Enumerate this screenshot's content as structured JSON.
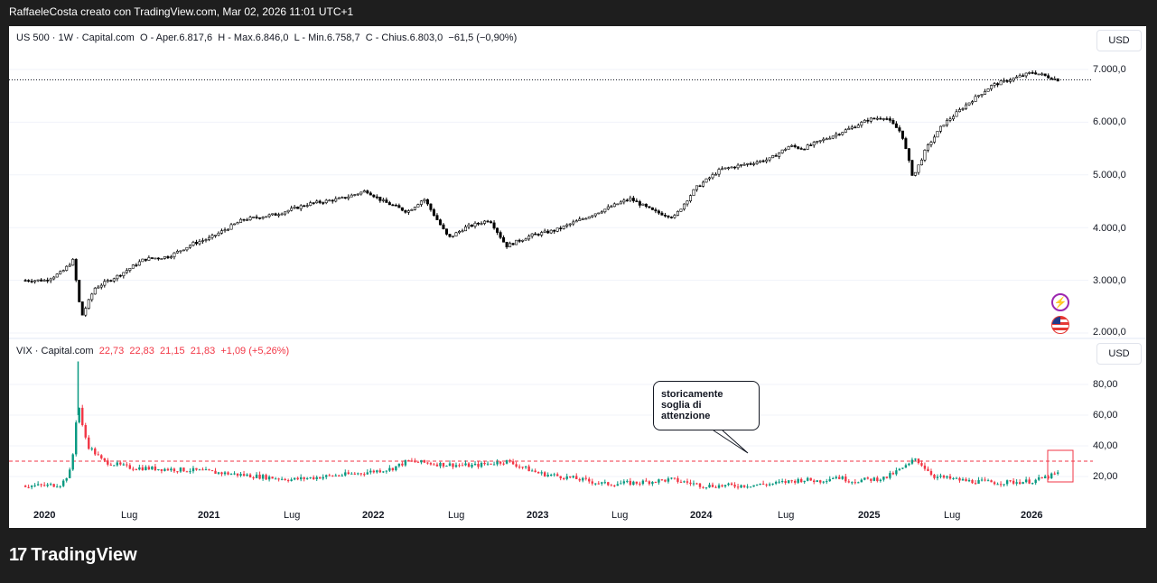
{
  "header": {
    "title": "RaffaeleCosta creato con TradingView.com, Mar 02, 2026 11:01 UTC+1"
  },
  "footer": {
    "brand": "TradingView"
  },
  "chart_data": [
    {
      "type": "candlestick",
      "legend": {
        "symbol": "US 500 · 1W · Capital.com",
        "open": "O - Aper.6.817,6",
        "high": "H - Max.6.846,0",
        "low": "L - Min.6.758,7",
        "close": "C - Chius.6.803,0",
        "change": "−61,5 (−0,90%)"
      },
      "currency_button": "USD",
      "y_ticks": [
        "7.000,0",
        "6.000,0",
        "5.000,0",
        "4.000,0",
        "3.000,0",
        "2.000,0"
      ],
      "y_tick_values": [
        7000,
        6000,
        5000,
        4000,
        3000,
        2000
      ],
      "ylim": [
        2000,
        7500
      ],
      "last_price_line": 6803,
      "x": [
        2020.0,
        2020.1,
        2020.17,
        2020.22,
        2020.3,
        2020.45,
        2020.6,
        2020.75,
        2020.9,
        2021.0,
        2021.2,
        2021.4,
        2021.6,
        2021.8,
        2021.95,
        2022.05,
        2022.2,
        2022.3,
        2022.45,
        2022.55,
        2022.7,
        2022.8,
        2022.95,
        2023.1,
        2023.25,
        2023.4,
        2023.55,
        2023.7,
        2023.82,
        2023.95,
        2024.1,
        2024.25,
        2024.4,
        2024.52,
        2024.6,
        2024.75,
        2024.9,
        2025.0,
        2025.1,
        2025.2,
        2025.27,
        2025.35,
        2025.45,
        2025.6,
        2025.75,
        2025.9,
        2026.0,
        2026.1,
        2026.15
      ],
      "values": [
        3000,
        3150,
        3380,
        2300,
        2850,
        3100,
        3400,
        3450,
        3700,
        3800,
        4150,
        4250,
        4450,
        4550,
        4700,
        4500,
        4300,
        4550,
        3800,
        4000,
        4150,
        3650,
        3850,
        3950,
        4150,
        4350,
        4550,
        4300,
        4200,
        4750,
        5100,
        5200,
        5300,
        5550,
        5500,
        5700,
        5900,
        6050,
        6100,
        5800,
        4950,
        5500,
        5950,
        6350,
        6700,
        6850,
        6950,
        6850,
        6803
      ]
    },
    {
      "type": "candlestick",
      "legend": {
        "symbol": "VIX · Capital.com",
        "open": "22,73",
        "high": "22,83",
        "low": "21,15",
        "close": "21,83",
        "change": "+1,09 (+5,26%)"
      },
      "currency_button": "USD",
      "y_ticks": [
        "80,00",
        "60,00",
        "40,00",
        "20,00"
      ],
      "y_tick_values": [
        80,
        60,
        40,
        20
      ],
      "ylim": [
        0,
        100
      ],
      "threshold_line": 30,
      "annotation": "storicamente soglia di attenzione",
      "x": [
        2020.0,
        2020.1,
        2020.16,
        2020.2,
        2020.22,
        2020.26,
        2020.35,
        2020.5,
        2020.7,
        2020.9,
        2021.1,
        2021.3,
        2021.5,
        2021.7,
        2021.9,
        2022.1,
        2022.2,
        2022.4,
        2022.6,
        2022.8,
        2023.0,
        2023.2,
        2023.4,
        2023.6,
        2023.8,
        2024.0,
        2024.2,
        2024.4,
        2024.6,
        2024.7,
        2024.8,
        2024.9,
        2025.1,
        2025.25,
        2025.28,
        2025.4,
        2025.6,
        2025.8,
        2026.0,
        2026.15
      ],
      "values": [
        14,
        15,
        25,
        70,
        55,
        40,
        30,
        26,
        25,
        24,
        22,
        20,
        18,
        20,
        22,
        25,
        30,
        28,
        27,
        30,
        22,
        19,
        15,
        16,
        18,
        14,
        14,
        15,
        18,
        17,
        20,
        17,
        19,
        28,
        32,
        20,
        17,
        16,
        17,
        21.83
      ]
    }
  ],
  "x_ticks": [
    "2020",
    "Lug",
    "2021",
    "Lug",
    "2022",
    "Lug",
    "2023",
    "Lug",
    "2024",
    "Lug",
    "2025",
    "Lug",
    "2026"
  ],
  "x_tick_values": [
    2020.0,
    2020.5,
    2021.0,
    2021.5,
    2022.0,
    2022.5,
    2023.0,
    2023.5,
    2024.0,
    2024.5,
    2025.0,
    2025.5,
    2026.0
  ],
  "colors": {
    "up": "#089981",
    "down": "#f23645",
    "main_candles": "#000000",
    "threshold": "#f23645",
    "icon_purple": "#9c27b0"
  },
  "icons": {
    "flash": "flash-icon",
    "flag": "us-flag-icon",
    "logo": "tradingview-logo-icon"
  }
}
